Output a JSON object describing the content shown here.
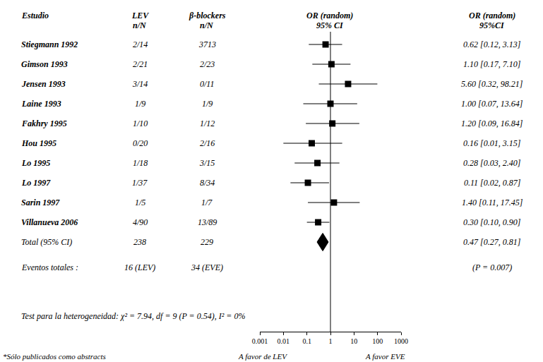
{
  "chart_data": {
    "type": "forest",
    "log": "x",
    "xlim": [
      0.001,
      1000
    ],
    "xticks": [
      0.001,
      0.01,
      0.1,
      1,
      10,
      100,
      1000
    ],
    "tick_labels": "x",
    "grid": false,
    "color": "#000000",
    "reference": 1,
    "columns": [
      {
        "lines": [
          "Estudio"
        ]
      },
      {
        "lines": [
          "LEV",
          "n/N"
        ]
      },
      {
        "lines": [
          "β-blockers",
          "n/N"
        ]
      },
      {
        "lines": [
          "OR (random)",
          "95% CI"
        ]
      },
      {
        "lines": [
          "OR (random)",
          "95%CI"
        ]
      }
    ],
    "studies": [
      {
        "name": "Stiegmann 1992",
        "lev": "2/14",
        "control": "3713",
        "or": 0.62,
        "lo": 0.12,
        "hi": 3.13,
        "text": "0.62 [0.12, 3.13]"
      },
      {
        "name": "Gimson 1993",
        "lev": "2/21",
        "control": "2/23",
        "or": 1.1,
        "lo": 0.17,
        "hi": 7.1,
        "text": "1.10 [0.17, 7.10]"
      },
      {
        "name": "Jensen 1993",
        "lev": "3/14",
        "control": "0/11",
        "or": 5.6,
        "lo": 0.32,
        "hi": 98.21,
        "text": "5.60 [0.32, 98.21]"
      },
      {
        "name": "Laine 1993",
        "lev": "1/9",
        "control": "1/9",
        "or": 1.0,
        "lo": 0.07,
        "hi": 13.64,
        "text": "1.00 [0.07, 13.64]"
      },
      {
        "name": "Fakhry 1995",
        "lev": "1/10",
        "control": "1/12",
        "or": 1.2,
        "lo": 0.09,
        "hi": 16.84,
        "text": "1.20 [0.09, 16.84]"
      },
      {
        "name": "Hou 1995",
        "lev": "0/20",
        "control": "2/16",
        "or": 0.16,
        "lo": 0.01,
        "hi": 3.15,
        "text": "0.16 [0.01, 3.15]"
      },
      {
        "name": "Lo 1995",
        "lev": "1/18",
        "control": "3/15",
        "or": 0.28,
        "lo": 0.03,
        "hi": 2.4,
        "text": "0.28 [0.03, 2.40]"
      },
      {
        "name": "Lo 1997",
        "lev": "1/37",
        "control": "8/34",
        "or": 0.11,
        "lo": 0.02,
        "hi": 0.87,
        "text": "0.11 [0.02, 0.87]"
      },
      {
        "name": "Sarin 1997",
        "lev": "1/5",
        "control": "1/7",
        "or": 1.4,
        "lo": 0.11,
        "hi": 17.45,
        "text": "1.40 [0.11, 17.45]"
      },
      {
        "name": "Villanueva 2006",
        "lev": "4/90",
        "control": "13/89",
        "or": 0.3,
        "lo": 0.1,
        "hi": 0.9,
        "text": "0.30 [0.10, 0.90]"
      }
    ],
    "total": {
      "name": "Total (95% CI)",
      "lev": "238",
      "control": "229",
      "or": 0.47,
      "lo": 0.27,
      "hi": 0.81,
      "text": "0.47 [0.27, 0.81]"
    },
    "events": {
      "name": "Eventos totales :",
      "lev": "16 (LEV)",
      "control": "34 (EVE)",
      "text": "(P = 0.007)"
    },
    "heterogeneity": "Test para la heterogeneidad: χ² = 7.94, df = 9 (P = 0.54), I² = 0%",
    "footnote": "*Sólo publicados como abstracts",
    "x_labels": [
      "A favor de LEV",
      "A favor EVE"
    ]
  }
}
